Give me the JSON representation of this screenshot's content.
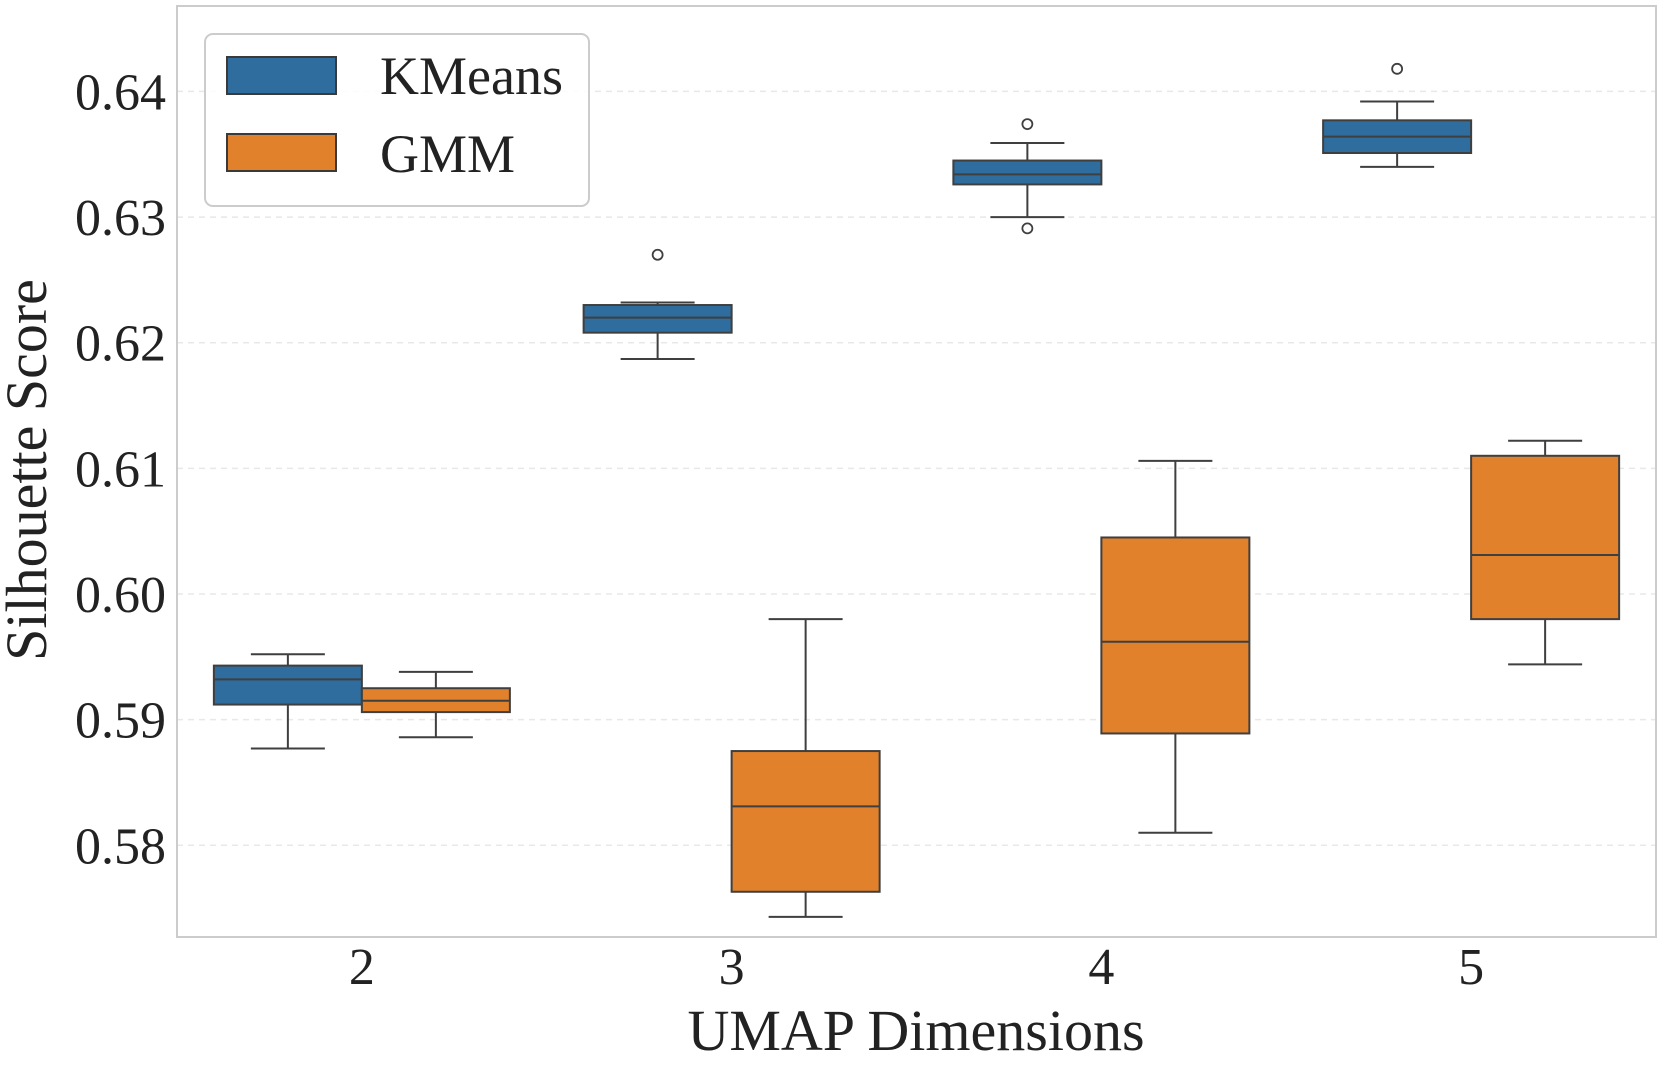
{
  "chart_data": {
    "type": "box",
    "title": "",
    "xlabel": "UMAP Dimensions",
    "ylabel": "Silhouette Score",
    "categories": [
      "2",
      "3",
      "4",
      "5"
    ],
    "ylim": [
      0.5727,
      0.6468
    ],
    "yticks": [
      0.58,
      0.59,
      0.6,
      0.61,
      0.62,
      0.63,
      0.64
    ],
    "ytick_labels": [
      "0.58",
      "0.59",
      "0.60",
      "0.61",
      "0.62",
      "0.63",
      "0.64"
    ],
    "grid": "horizontal dashed",
    "legend_position": "top-left",
    "series": [
      {
        "name": "KMeans",
        "color": "#2e6d9e",
        "boxes": [
          {
            "whisker_low": 0.5877,
            "q1": 0.5912,
            "median": 0.5932,
            "q3": 0.5943,
            "whisker_high": 0.5952,
            "outliers": []
          },
          {
            "whisker_low": 0.6187,
            "q1": 0.6208,
            "median": 0.622,
            "q3": 0.623,
            "whisker_high": 0.6232,
            "outliers": [
              0.627
            ]
          },
          {
            "whisker_low": 0.63,
            "q1": 0.6326,
            "median": 0.6334,
            "q3": 0.6345,
            "whisker_high": 0.6359,
            "outliers": [
              0.6374,
              0.6291
            ]
          },
          {
            "whisker_low": 0.634,
            "q1": 0.6351,
            "median": 0.6364,
            "q3": 0.6377,
            "whisker_high": 0.6392,
            "outliers": [
              0.6418
            ]
          }
        ]
      },
      {
        "name": "GMM",
        "color": "#e1812c",
        "boxes": [
          {
            "whisker_low": 0.5886,
            "q1": 0.5906,
            "median": 0.5915,
            "q3": 0.5925,
            "whisker_high": 0.5938,
            "outliers": []
          },
          {
            "whisker_low": 0.5743,
            "q1": 0.5763,
            "median": 0.5831,
            "q3": 0.5875,
            "whisker_high": 0.598,
            "outliers": []
          },
          {
            "whisker_low": 0.581,
            "q1": 0.5889,
            "median": 0.5962,
            "q3": 0.6045,
            "whisker_high": 0.6106,
            "outliers": []
          },
          {
            "whisker_low": 0.5944,
            "q1": 0.598,
            "median": 0.6031,
            "q3": 0.611,
            "whisker_high": 0.6122,
            "outliers": []
          }
        ]
      }
    ]
  }
}
